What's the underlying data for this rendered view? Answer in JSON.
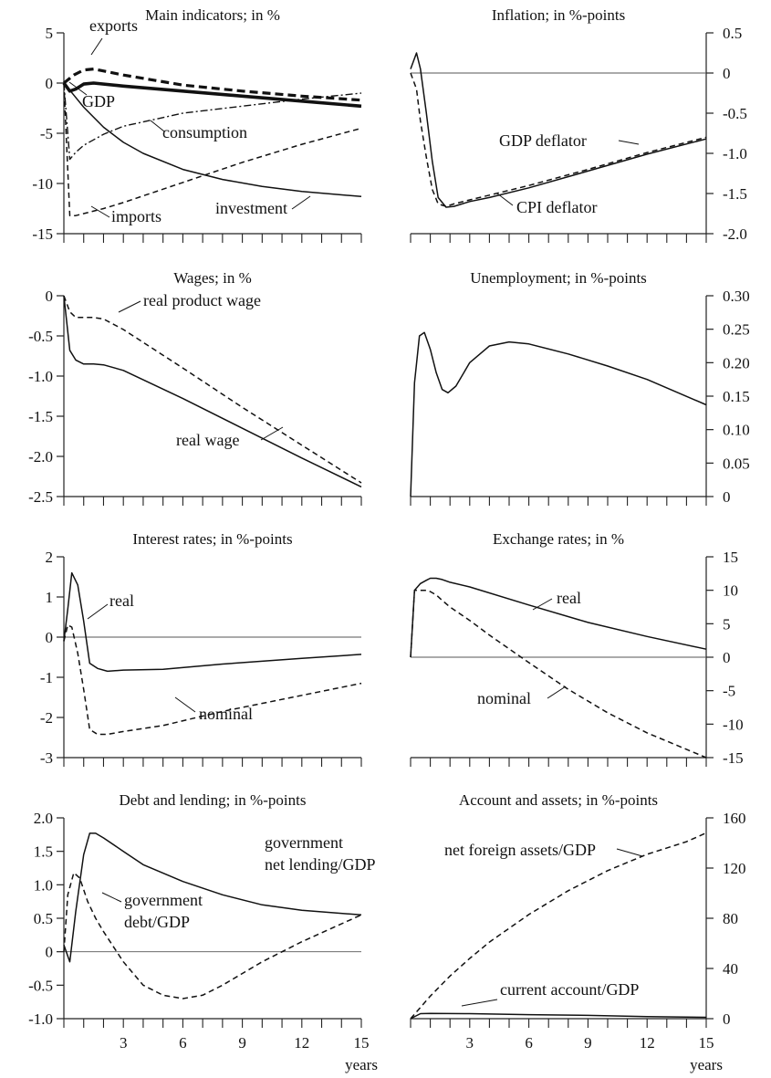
{
  "chart_data": [
    {
      "type": "line",
      "title": "Main indicators; in %",
      "yaxis_side": "left",
      "ylim": [
        -15,
        5
      ],
      "yticks": [
        "5",
        "0",
        "-5",
        "-10",
        "-15"
      ],
      "xlim": [
        0,
        15
      ],
      "zero_line": false,
      "series": [
        {
          "name": "exports",
          "style": "thick-dashed",
          "x": [
            0,
            0.5,
            1,
            1.5,
            3,
            6,
            9,
            12,
            15
          ],
          "y": [
            0,
            0.8,
            1.3,
            1.4,
            0.8,
            -0.2,
            -0.8,
            -1.3,
            -1.7
          ]
        },
        {
          "name": "GDP",
          "style": "thick-solid",
          "x": [
            0,
            0.3,
            0.6,
            1,
            1.5,
            3,
            6,
            9,
            12,
            15
          ],
          "y": [
            0,
            -0.8,
            -0.6,
            -0.1,
            0,
            -0.3,
            -0.8,
            -1.3,
            -1.8,
            -2.3
          ]
        },
        {
          "name": "consumption",
          "style": "dashdot",
          "x": [
            0,
            0.3,
            0.6,
            1,
            2,
            3,
            6,
            9,
            12,
            15
          ],
          "y": [
            0,
            -7.6,
            -6.9,
            -6.2,
            -5.1,
            -4.3,
            -3,
            -2.3,
            -1.6,
            -1
          ]
        },
        {
          "name": "imports",
          "style": "dashed",
          "x": [
            0,
            0.3,
            0.6,
            1,
            2,
            3,
            6,
            9,
            12,
            15
          ],
          "y": [
            0,
            -13.2,
            -13.2,
            -13,
            -12.5,
            -11.9,
            -9.9,
            -7.9,
            -6.1,
            -4.5
          ]
        },
        {
          "name": "investment",
          "style": "solid",
          "x": [
            0,
            0.5,
            1,
            2,
            3,
            4,
            6,
            8,
            10,
            12,
            15
          ],
          "y": [
            0,
            -1.2,
            -2.4,
            -4.4,
            -5.9,
            -7,
            -8.6,
            -9.6,
            -10.3,
            -10.8,
            -11.3
          ]
        }
      ],
      "annotations": [
        "exports",
        "GDP",
        "consumption",
        "imports",
        "investment"
      ]
    },
    {
      "type": "line",
      "title": "Inflation; in %-points",
      "yaxis_side": "right",
      "ylim": [
        -2,
        0.5
      ],
      "yticks": [
        "0.5",
        "0",
        "-0.5",
        "-1.0",
        "-1.5",
        "-2.0"
      ],
      "xlim": [
        0,
        15
      ],
      "zero_line": true,
      "series": [
        {
          "name": "GDP deflator",
          "style": "solid",
          "x": [
            0,
            0.3,
            0.5,
            0.8,
            1.1,
            1.4,
            1.8,
            2.2,
            3,
            4,
            6,
            9,
            12,
            15
          ],
          "y": [
            0.05,
            0.25,
            0.05,
            -0.5,
            -1.1,
            -1.55,
            -1.67,
            -1.66,
            -1.6,
            -1.55,
            -1.43,
            -1.22,
            -1.01,
            -0.82
          ]
        },
        {
          "name": "CPI deflator",
          "style": "dashed",
          "x": [
            0,
            0.3,
            0.5,
            0.8,
            1.1,
            1.4,
            1.8,
            2.2,
            3,
            4,
            6,
            9,
            12,
            15
          ],
          "y": [
            0,
            -0.2,
            -0.6,
            -1.05,
            -1.45,
            -1.63,
            -1.66,
            -1.63,
            -1.58,
            -1.52,
            -1.4,
            -1.2,
            -0.99,
            -0.8
          ]
        }
      ],
      "annotations": [
        "GDP deflator",
        "CPI deflator"
      ]
    },
    {
      "type": "line",
      "title": "Wages; in %",
      "yaxis_side": "left",
      "ylim": [
        -2.5,
        0
      ],
      "yticks": [
        "0",
        "-0.5",
        "-1.0",
        "-1.5",
        "-2.0",
        "-2.5"
      ],
      "xlim": [
        0,
        15
      ],
      "zero_line": false,
      "series": [
        {
          "name": "real product wage",
          "style": "dashed",
          "x": [
            0,
            0.3,
            0.6,
            1,
            1.5,
            2,
            3,
            6,
            9,
            12,
            15
          ],
          "y": [
            0,
            -0.2,
            -0.27,
            -0.27,
            -0.27,
            -0.29,
            -0.42,
            -0.9,
            -1.39,
            -1.86,
            -2.33
          ]
        },
        {
          "name": "real wage",
          "style": "solid",
          "x": [
            0,
            0.3,
            0.6,
            1,
            1.5,
            2,
            3,
            6,
            9,
            12,
            15
          ],
          "y": [
            0,
            -0.68,
            -0.8,
            -0.85,
            -0.85,
            -0.86,
            -0.93,
            -1.28,
            -1.65,
            -2.02,
            -2.38
          ]
        }
      ],
      "annotations": [
        "real product wage",
        "real wage"
      ]
    },
    {
      "type": "line",
      "title": "Unemployment; in %-points",
      "yaxis_side": "right",
      "ylim": [
        0,
        0.3
      ],
      "yticks": [
        "0.30",
        "0.25",
        "0.20",
        "0.15",
        "0.10",
        "0.05",
        "0"
      ],
      "xlim": [
        0,
        15
      ],
      "zero_line": false,
      "series": [
        {
          "name": "unemployment",
          "style": "solid",
          "x": [
            0,
            0.2,
            0.45,
            0.7,
            1,
            1.3,
            1.6,
            1.9,
            2.3,
            3,
            4,
            5,
            6,
            8,
            10,
            12,
            15
          ],
          "y": [
            0,
            0.17,
            0.24,
            0.245,
            0.22,
            0.185,
            0.16,
            0.155,
            0.165,
            0.2,
            0.225,
            0.231,
            0.228,
            0.213,
            0.195,
            0.175,
            0.137
          ]
        }
      ],
      "annotations": []
    },
    {
      "type": "line",
      "title": "Interest rates; in %-points",
      "yaxis_side": "left",
      "ylim": [
        -3,
        2
      ],
      "yticks": [
        "2",
        "1",
        "0",
        "-1",
        "-2",
        "-3"
      ],
      "xlim": [
        0,
        15
      ],
      "zero_line": true,
      "series": [
        {
          "name": "real",
          "style": "solid",
          "x": [
            0,
            0.2,
            0.4,
            0.7,
            1,
            1.3,
            1.7,
            2.2,
            3,
            5,
            8,
            12,
            15
          ],
          "y": [
            -0.1,
            0.7,
            1.6,
            1.3,
            0.4,
            -0.65,
            -0.78,
            -0.85,
            -0.82,
            -0.8,
            -0.67,
            -0.53,
            -0.43
          ]
        },
        {
          "name": "nominal",
          "style": "dashed",
          "x": [
            0,
            0.2,
            0.4,
            0.7,
            1,
            1.3,
            1.7,
            2.2,
            3,
            5,
            8,
            12,
            15
          ],
          "y": [
            -0.1,
            0.3,
            0.25,
            -0.4,
            -1.3,
            -2.3,
            -2.42,
            -2.42,
            -2.35,
            -2.2,
            -1.85,
            -1.45,
            -1.15
          ]
        }
      ],
      "annotations": [
        "real",
        "nominal"
      ]
    },
    {
      "type": "line",
      "title": "Exchange rates; in %",
      "yaxis_side": "right",
      "ylim": [
        -15,
        15
      ],
      "yticks": [
        "15",
        "10",
        "5",
        "0",
        "-5",
        "-10",
        "-15"
      ],
      "xlim": [
        0,
        15
      ],
      "zero_line": true,
      "series": [
        {
          "name": "real",
          "style": "solid",
          "x": [
            0,
            0.2,
            0.5,
            0.8,
            1,
            1.3,
            1.6,
            2,
            3,
            6,
            9,
            12,
            15
          ],
          "y": [
            0,
            10,
            11,
            11.5,
            11.8,
            11.8,
            11.6,
            11.2,
            10.5,
            7.8,
            5.2,
            3.1,
            1.2
          ]
        },
        {
          "name": "nominal",
          "style": "dashed",
          "x": [
            0,
            0.2,
            0.5,
            0.8,
            1,
            1.3,
            1.6,
            2,
            3,
            4,
            6,
            8,
            10,
            12,
            15
          ],
          "y": [
            0,
            10,
            10,
            10,
            9.8,
            9.3,
            8.5,
            7.5,
            5.5,
            3.3,
            -0.8,
            -4.8,
            -8.3,
            -11.3,
            -15
          ]
        }
      ],
      "annotations": [
        "real",
        "nominal"
      ]
    },
    {
      "type": "line",
      "title": "Debt and lending; in %-points",
      "yaxis_side": "left",
      "ylim": [
        -1,
        2
      ],
      "yticks": [
        "2.0",
        "1.5",
        "1.0",
        "0.5",
        "0",
        "-0.5",
        "-1.0"
      ],
      "xlim": [
        0,
        15
      ],
      "zero_line": true,
      "series": [
        {
          "name": "government net lending/GDP",
          "style": "solid",
          "x": [
            0,
            0.3,
            0.6,
            1,
            1.3,
            1.6,
            2,
            3,
            4,
            6,
            8,
            10,
            12,
            15
          ],
          "y": [
            0.1,
            -0.15,
            0.6,
            1.45,
            1.77,
            1.77,
            1.7,
            1.5,
            1.3,
            1.05,
            0.85,
            0.7,
            0.62,
            0.55
          ]
        },
        {
          "name": "government debt/GDP",
          "style": "dashed",
          "x": [
            0,
            0.2,
            0.5,
            0.8,
            1.2,
            1.6,
            2,
            3,
            4,
            5,
            6,
            7,
            8,
            10,
            12,
            15
          ],
          "y": [
            0,
            0.85,
            1.18,
            1.1,
            0.75,
            0.5,
            0.3,
            -0.15,
            -0.5,
            -0.65,
            -0.7,
            -0.65,
            -0.5,
            -0.15,
            0.15,
            0.55
          ]
        }
      ],
      "annotations": [
        "government",
        "net lending/GDP",
        "government",
        "debt/GDP"
      ]
    },
    {
      "type": "line",
      "title": "Account and assets; in %-points",
      "yaxis_side": "right",
      "ylim": [
        0,
        160
      ],
      "yticks": [
        "160",
        "120",
        "80",
        "40",
        "0"
      ],
      "xlim": [
        0,
        15
      ],
      "zero_line": false,
      "series": [
        {
          "name": "net foreign assets/GDP",
          "style": "dashed",
          "x": [
            0,
            1,
            2,
            3,
            4,
            6,
            8,
            10,
            12,
            14,
            15
          ],
          "y": [
            0,
            18,
            34,
            48,
            61,
            83,
            102,
            118,
            131,
            141,
            148
          ]
        },
        {
          "name": "current account/GDP",
          "style": "solid",
          "x": [
            0,
            0.5,
            1,
            3,
            6,
            9,
            12,
            15
          ],
          "y": [
            0,
            4,
            4.2,
            4,
            3.2,
            2.6,
            1.7,
            1.1
          ]
        }
      ],
      "annotations": [
        "net foreign assets/GDP",
        "current account/GDP"
      ]
    }
  ],
  "x_axis": {
    "tick_labels": [
      "3",
      "6",
      "9",
      "12",
      "15"
    ],
    "label": "years"
  }
}
